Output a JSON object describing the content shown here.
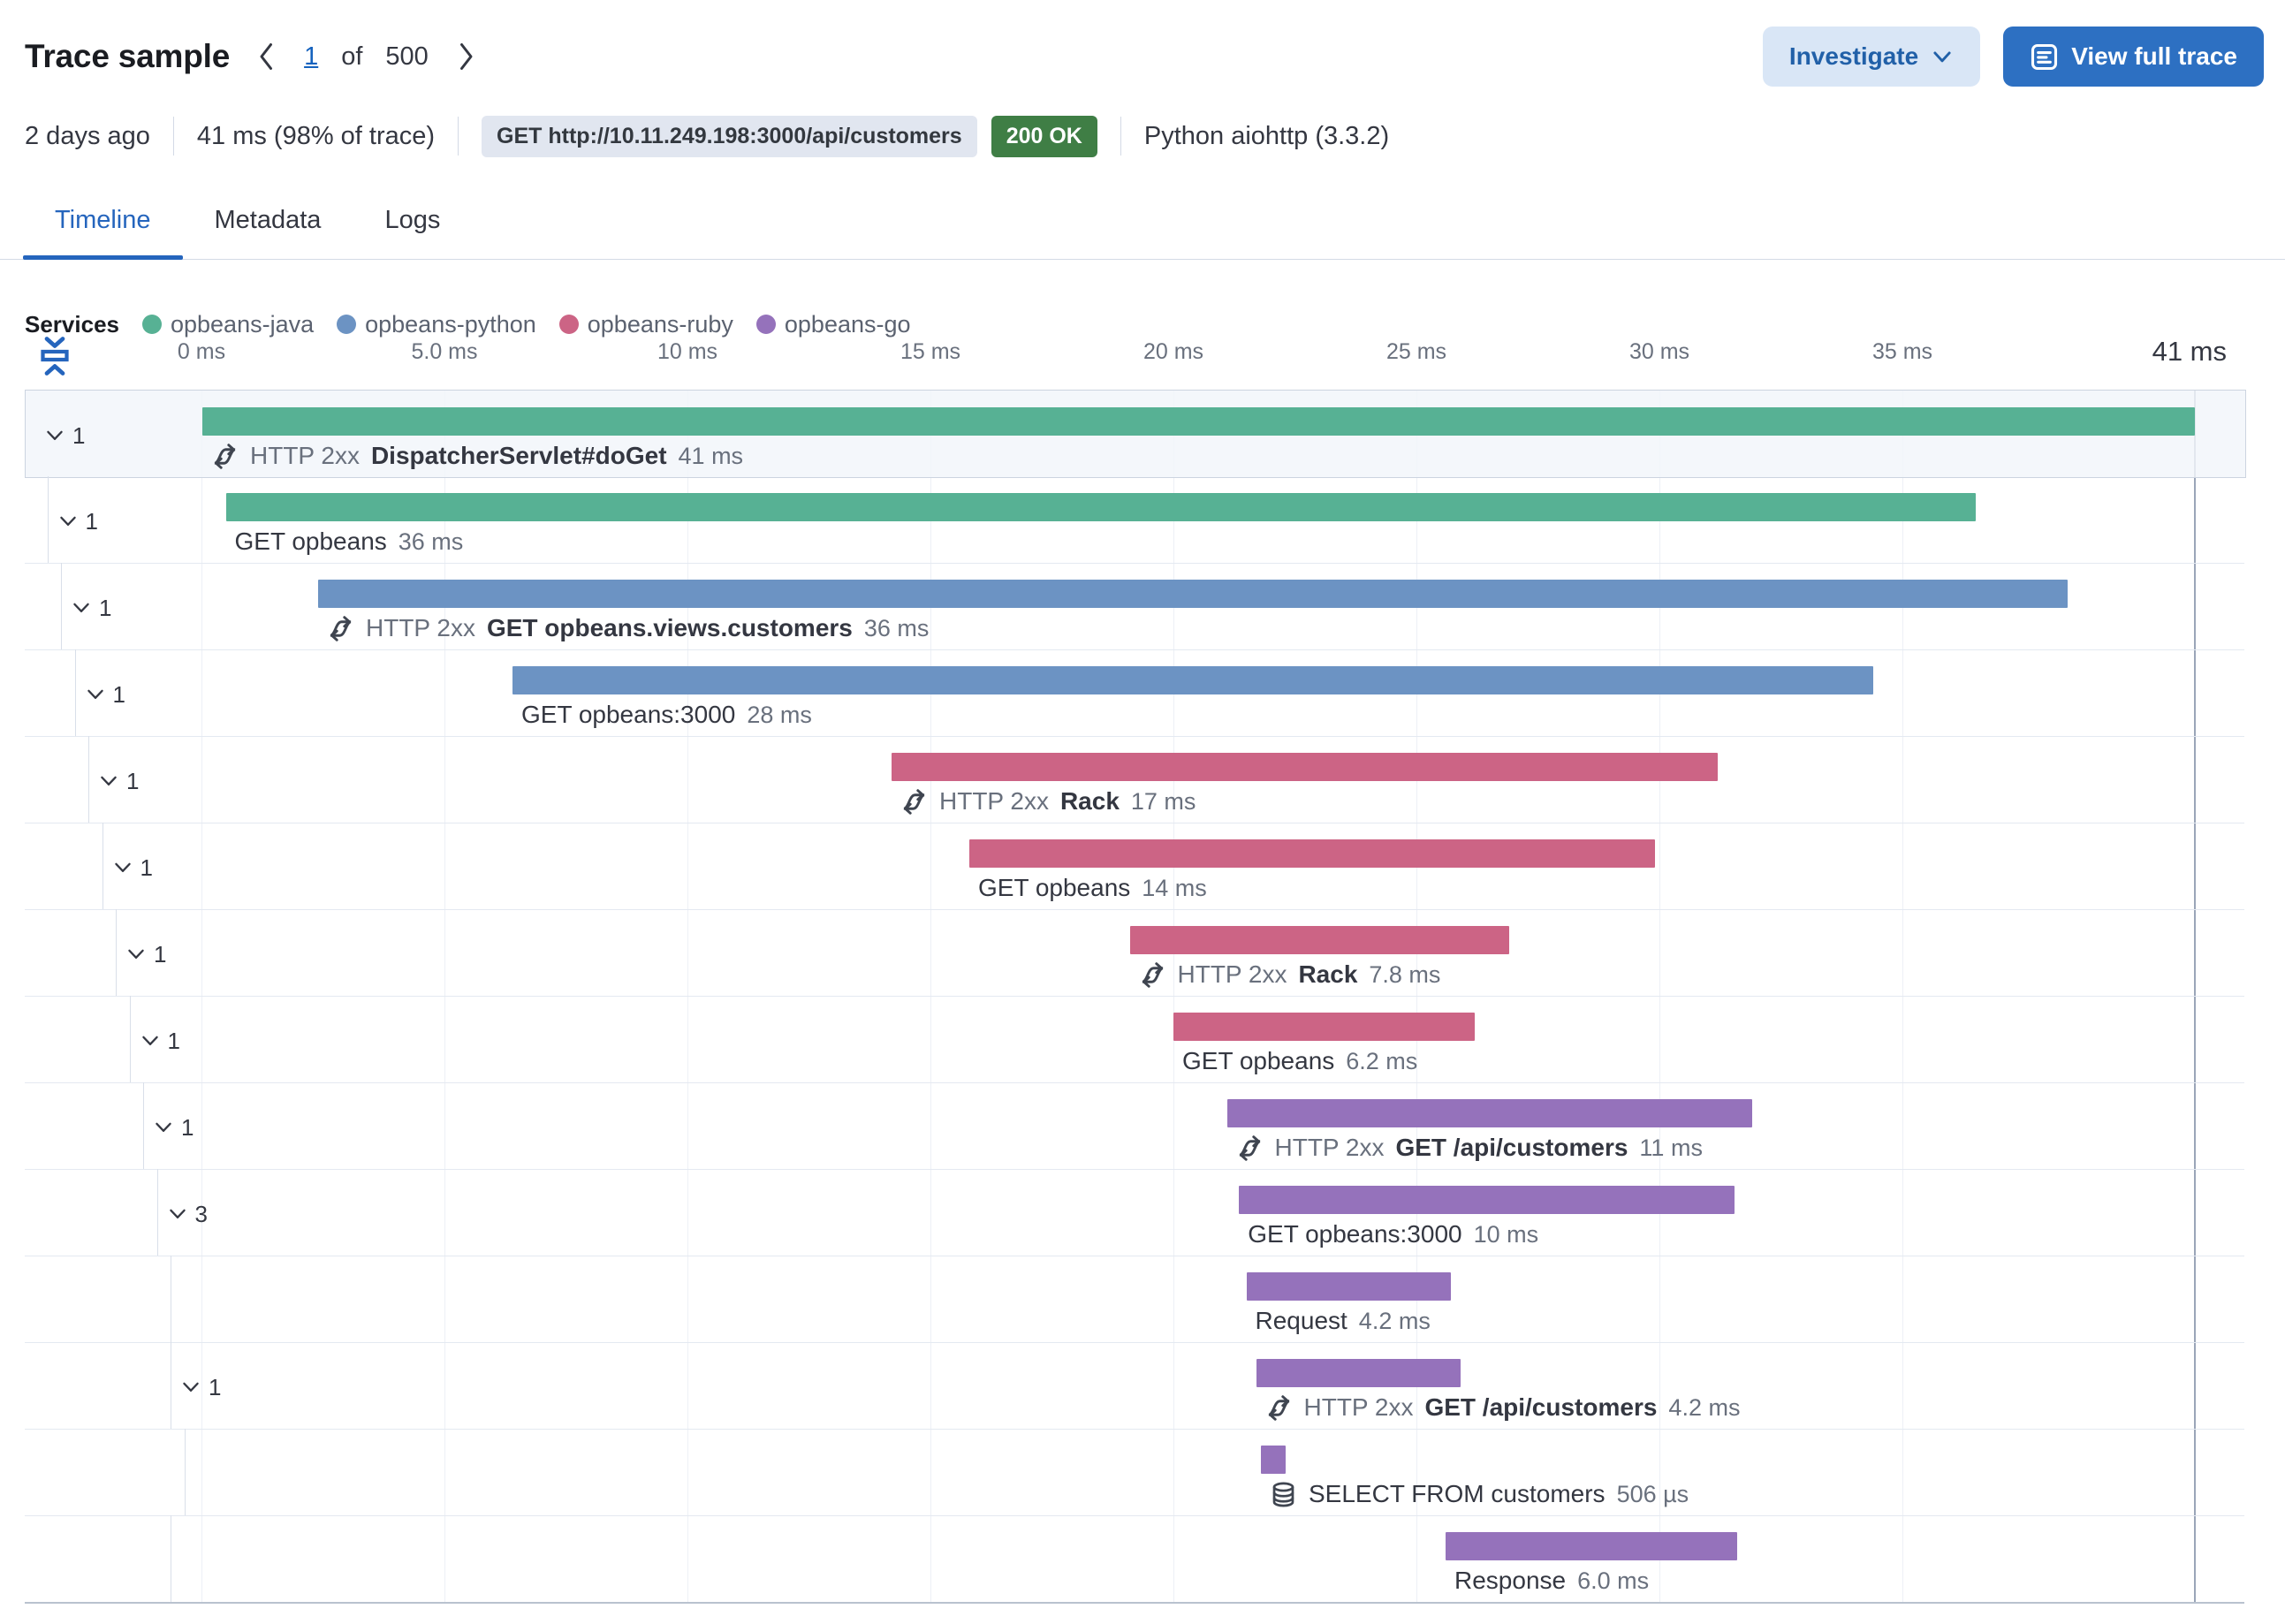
{
  "header": {
    "title": "Trace sample",
    "pagination": {
      "current": "1",
      "of_label": "of",
      "total": "500"
    },
    "investigate_label": "Investigate",
    "view_full_trace_label": "View full trace"
  },
  "summary": {
    "timestamp": "2 days ago",
    "duration": "41 ms (98% of trace)",
    "request_badge": "GET http://10.11.249.198:3000/api/customers",
    "status_badge": "200 OK",
    "agent": "Python aiohttp (3.3.2)"
  },
  "tabs": {
    "items": [
      {
        "label": "Timeline",
        "active": true
      },
      {
        "label": "Metadata",
        "active": false
      },
      {
        "label": "Logs",
        "active": false
      }
    ]
  },
  "legend": {
    "label": "Services",
    "items": [
      {
        "name": "opbeans-java",
        "color": "#57b194"
      },
      {
        "name": "opbeans-python",
        "color": "#6c93c3"
      },
      {
        "name": "opbeans-ruby",
        "color": "#cc6485"
      },
      {
        "name": "opbeans-go",
        "color": "#9572bb"
      }
    ]
  },
  "axis": {
    "ticks": [
      {
        "label": "0 ms",
        "ms": 0
      },
      {
        "label": "5.0 ms",
        "ms": 5
      },
      {
        "label": "10 ms",
        "ms": 10
      },
      {
        "label": "15 ms",
        "ms": 15
      },
      {
        "label": "20 ms",
        "ms": 20
      },
      {
        "label": "25 ms",
        "ms": 25
      },
      {
        "label": "30 ms",
        "ms": 30
      },
      {
        "label": "35 ms",
        "ms": 35
      }
    ],
    "total": {
      "label": "41 ms",
      "ms": 41
    }
  },
  "waterfall": {
    "rows": [
      {
        "level": 0,
        "service": "opbeans-java",
        "start_ms": 0,
        "width_ms": 41,
        "duration": "41 ms",
        "type_badge": "HTTP 2xx",
        "name": "DispatcherServlet#doGet",
        "emphasis": true,
        "icon": "merge",
        "children_count": "1",
        "selected": true
      },
      {
        "level": 1,
        "service": "opbeans-java",
        "start_ms": 0.5,
        "width_ms": 36,
        "duration": "36 ms",
        "type_badge": null,
        "name": "GET opbeans",
        "emphasis": false,
        "icon": null,
        "children_count": "1",
        "selected": false
      },
      {
        "level": 2,
        "service": "opbeans-python",
        "start_ms": 2.4,
        "width_ms": 36,
        "duration": "36 ms",
        "type_badge": "HTTP 2xx",
        "name": "GET opbeans.views.customers",
        "emphasis": true,
        "icon": "merge",
        "children_count": "1",
        "selected": false
      },
      {
        "level": 3,
        "service": "opbeans-python",
        "start_ms": 6.4,
        "width_ms": 28,
        "duration": "28 ms",
        "type_badge": null,
        "name": "GET opbeans:3000",
        "emphasis": false,
        "icon": null,
        "children_count": "1",
        "selected": false
      },
      {
        "level": 4,
        "service": "opbeans-ruby",
        "start_ms": 14.2,
        "width_ms": 17,
        "duration": "17 ms",
        "type_badge": "HTTP 2xx",
        "name": "Rack",
        "emphasis": true,
        "icon": "merge",
        "children_count": "1",
        "selected": false
      },
      {
        "level": 5,
        "service": "opbeans-ruby",
        "start_ms": 15.8,
        "width_ms": 14.1,
        "duration": "14 ms",
        "type_badge": null,
        "name": "GET opbeans",
        "emphasis": false,
        "icon": null,
        "children_count": "1",
        "selected": false
      },
      {
        "level": 6,
        "service": "opbeans-ruby",
        "start_ms": 19.1,
        "width_ms": 7.8,
        "duration": "7.8 ms",
        "type_badge": "HTTP 2xx",
        "name": "Rack",
        "emphasis": true,
        "icon": "merge",
        "children_count": "1",
        "selected": false
      },
      {
        "level": 7,
        "service": "opbeans-ruby",
        "start_ms": 20.0,
        "width_ms": 6.2,
        "duration": "6.2 ms",
        "type_badge": null,
        "name": "GET opbeans",
        "emphasis": false,
        "icon": null,
        "children_count": "1",
        "selected": false
      },
      {
        "level": 8,
        "service": "opbeans-go",
        "start_ms": 21.1,
        "width_ms": 10.8,
        "duration": "11 ms",
        "type_badge": "HTTP 2xx",
        "name": "GET /api/customers",
        "emphasis": true,
        "icon": "merge",
        "children_count": "1",
        "selected": false
      },
      {
        "level": 9,
        "service": "opbeans-go",
        "start_ms": 21.35,
        "width_ms": 10.2,
        "duration": "10 ms",
        "type_badge": null,
        "name": "GET opbeans:3000",
        "emphasis": false,
        "icon": null,
        "children_count": "3",
        "selected": false
      },
      {
        "level": 10,
        "service": "opbeans-go",
        "start_ms": 21.5,
        "width_ms": 4.2,
        "duration": "4.2 ms",
        "type_badge": null,
        "name": "Request",
        "emphasis": false,
        "icon": null,
        "children_count": null,
        "selected": false
      },
      {
        "level": 10,
        "service": "opbeans-go",
        "start_ms": 21.7,
        "width_ms": 4.2,
        "duration": "4.2 ms",
        "type_badge": "HTTP 2xx",
        "name": "GET /api/customers",
        "emphasis": true,
        "icon": "merge",
        "children_count": "1",
        "selected": false
      },
      {
        "level": 11,
        "service": "opbeans-go",
        "start_ms": 21.8,
        "width_ms": 0.506,
        "duration": "506 µs",
        "type_badge": null,
        "name": "SELECT FROM customers",
        "emphasis": false,
        "icon": "database",
        "children_count": null,
        "selected": false
      },
      {
        "level": 10,
        "service": "opbeans-go",
        "start_ms": 25.6,
        "width_ms": 6.0,
        "duration": "6.0 ms",
        "type_badge": null,
        "name": "Response",
        "emphasis": false,
        "icon": null,
        "children_count": null,
        "selected": false
      }
    ]
  }
}
